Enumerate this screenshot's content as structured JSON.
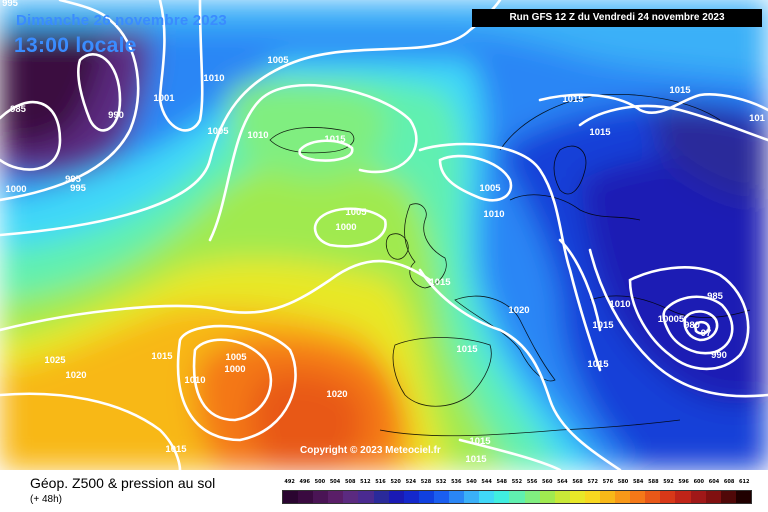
{
  "header": {
    "date": "Dimanche 26 novembre 2023",
    "time": "13:00 locale",
    "run": "Run GFS 12 Z du Vendredi 24 novembre 2023"
  },
  "copyright": "Copyright © 2023 Meteociel.fr",
  "footer": {
    "title": "Géop. Z500 & pression au sol",
    "subtitle": "(+ 48h)"
  },
  "legend": {
    "values": [
      "492",
      "496",
      "500",
      "504",
      "508",
      "512",
      "516",
      "520",
      "524",
      "528",
      "532",
      "536",
      "540",
      "544",
      "548",
      "552",
      "556",
      "560",
      "564",
      "568",
      "572",
      "576",
      "580",
      "584",
      "588",
      "592",
      "596",
      "600",
      "604",
      "608",
      "612"
    ],
    "colors": [
      "#2a0530",
      "#3a0a40",
      "#4a1455",
      "#5a1e68",
      "#5b2a80",
      "#4a2a90",
      "#2a2a9a",
      "#1a1ab4",
      "#1428cc",
      "#1040e0",
      "#1a5ef0",
      "#2a86f5",
      "#3ab0f8",
      "#40d8f8",
      "#40eee0",
      "#60f0b0",
      "#80ee80",
      "#a0ea50",
      "#c8e838",
      "#e8e828",
      "#f8d820",
      "#f8b818",
      "#f89818",
      "#f47818",
      "#e85818",
      "#d83818",
      "#c02418",
      "#a01818",
      "#801010",
      "#500808",
      "#200000"
    ]
  },
  "pressure_labels": [
    "995",
    "985",
    "990",
    "1000",
    "1001",
    "995",
    "995",
    "1010",
    "1005",
    "1005",
    "1010",
    "1015",
    "1005",
    "1000",
    "1015",
    "1015",
    "1005",
    "1010",
    "1015",
    "101",
    "1015",
    "1020",
    "1010",
    "1015",
    "10005",
    "985",
    "980",
    "97",
    "990",
    "1015",
    "1015",
    "1025",
    "1020",
    "1010",
    "1005",
    "1000",
    "1015",
    "1020",
    "1015",
    "1015",
    "1015"
  ]
}
